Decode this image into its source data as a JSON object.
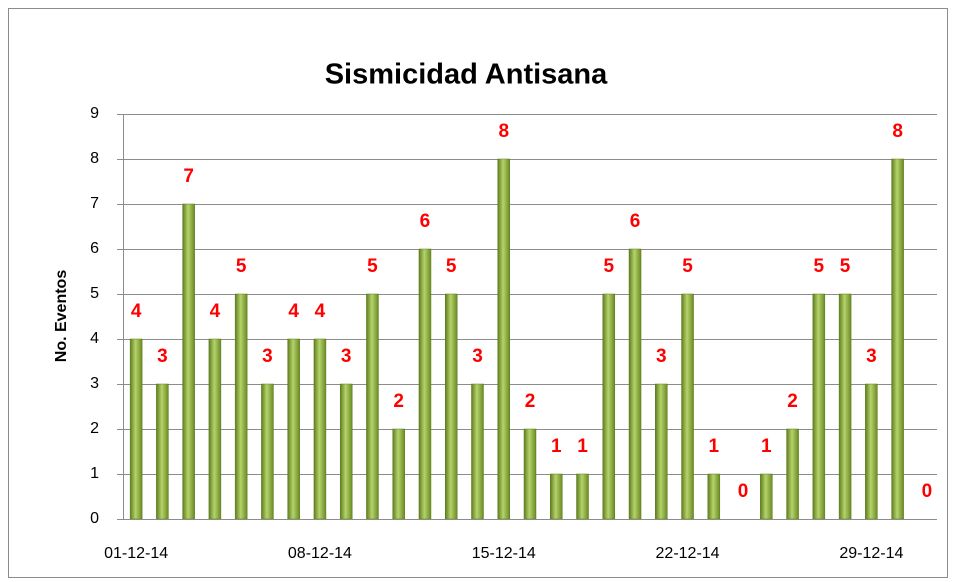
{
  "chart_data": {
    "type": "bar",
    "title": "Sismicidad Antisana",
    "y_label": "No. Eventos",
    "categories": [
      "01-12-14",
      null,
      null,
      null,
      null,
      null,
      null,
      "08-12-14",
      null,
      null,
      null,
      null,
      null,
      null,
      "15-12-14",
      null,
      null,
      null,
      null,
      null,
      null,
      "22-12-14",
      null,
      null,
      null,
      null,
      null,
      null,
      "29-12-14",
      null,
      null
    ],
    "values": [
      4,
      3,
      7,
      4,
      5,
      3,
      4,
      4,
      3,
      5,
      2,
      6,
      5,
      3,
      8,
      2,
      1,
      1,
      5,
      6,
      3,
      5,
      1,
      0,
      1,
      2,
      5,
      5,
      3,
      8,
      0
    ],
    "color": "#8aac3b",
    "ylim": [
      0,
      9
    ],
    "yticks": [
      0,
      1,
      2,
      3,
      4,
      5,
      6,
      7,
      8,
      9
    ],
    "grid": true
  }
}
